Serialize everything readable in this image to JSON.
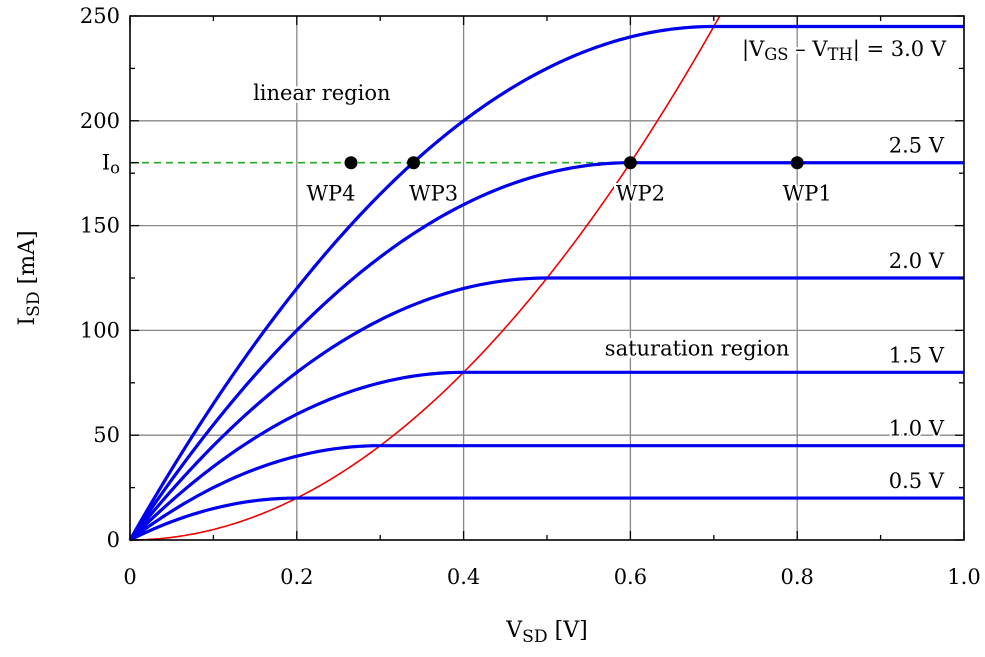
{
  "chart_data": {
    "type": "line",
    "xlabel": {
      "main": "V",
      "sub": "SD",
      "unit": "[V]"
    },
    "ylabel": {
      "main": "I",
      "sub": "SD",
      "unit": "[mA]"
    },
    "xlim": [
      0,
      1.0
    ],
    "ylim": [
      0,
      250
    ],
    "x_ticks": [
      {
        "value": 0,
        "label": "0"
      },
      {
        "value": 0.2,
        "label": "0.2"
      },
      {
        "value": 0.4,
        "label": "0.4"
      },
      {
        "value": 0.6,
        "label": "0.6"
      },
      {
        "value": 0.8,
        "label": "0.8"
      },
      {
        "value": 1.0,
        "label": "1.0"
      }
    ],
    "y_ticks": [
      {
        "value": 0,
        "label": "0"
      },
      {
        "value": 50,
        "label": "50"
      },
      {
        "value": 100,
        "label": "100"
      },
      {
        "value": 150,
        "label": "150"
      },
      {
        "value": 200,
        "label": "200"
      },
      {
        "value": 250,
        "label": "250"
      }
    ],
    "io_tick": {
      "value": 180,
      "main": "I",
      "sub": "o"
    },
    "grid": true,
    "series": [
      {
        "label": "0.5 V",
        "vov": 0.2,
        "k": 500,
        "color": "#0000ee"
      },
      {
        "label": "1.0 V",
        "vov": 0.3,
        "k": 500,
        "color": "#0000ee"
      },
      {
        "label": "1.5 V",
        "vov": 0.4,
        "k": 500,
        "color": "#0000ee"
      },
      {
        "label": "2.0 V",
        "vov": 0.5,
        "k": 500,
        "color": "#0000ee"
      },
      {
        "label": "2.5 V",
        "vov": 0.6,
        "k": 500,
        "color": "#0000ee"
      },
      {
        "label": "",
        "vov": 0.7,
        "k": 500,
        "color": "#0000ee"
      }
    ],
    "top_curve_label": {
      "prefix": "|V",
      "sub1": "GS",
      "mid": " – V",
      "sub2": "TH",
      "suffix": "| = 3.0 V"
    },
    "saturation_boundary": {
      "formula": "I = k·V²",
      "k": 500,
      "color": "#ee0000"
    },
    "io_line": {
      "value": 180,
      "x_end": 0.6,
      "color": "#22aa22",
      "style": "dashed"
    },
    "working_points": [
      {
        "name": "WP4",
        "x": 0.265,
        "y": 180
      },
      {
        "name": "WP3",
        "x": 0.34,
        "y": 180
      },
      {
        "name": "WP2",
        "x": 0.6,
        "y": 180
      },
      {
        "name": "WP1",
        "x": 0.8,
        "y": 180
      }
    ],
    "annotations": [
      {
        "text": "linear region",
        "x": 0.23,
        "y": 210
      },
      {
        "text": "saturation region",
        "x": 0.68,
        "y": 88
      }
    ],
    "colors": {
      "curve": "#0000ee",
      "boundary": "#ee0000",
      "io_line": "#22aa22",
      "grid": "#888888"
    }
  }
}
